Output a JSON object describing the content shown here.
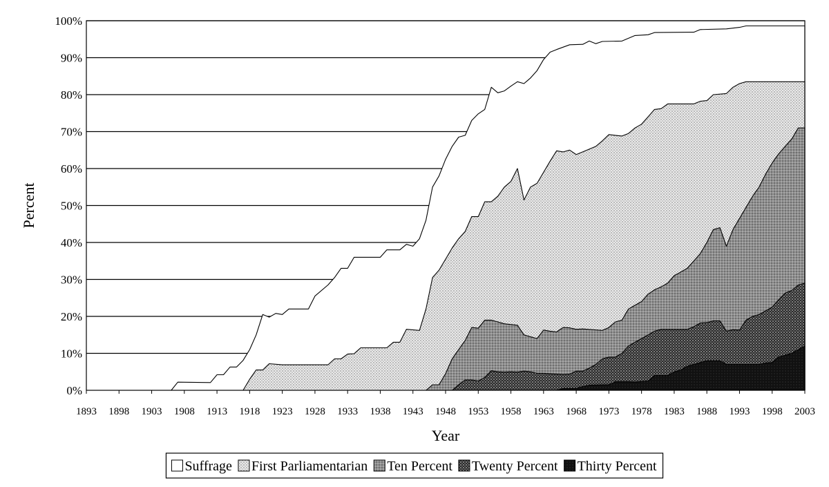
{
  "chart_data": {
    "type": "area",
    "xlabel": "Year",
    "ylabel": "Percent",
    "xlim": [
      1893,
      2003
    ],
    "ylim": [
      0,
      100
    ],
    "x_ticks": [
      1893,
      1898,
      1903,
      1908,
      1913,
      1918,
      1923,
      1928,
      1933,
      1938,
      1943,
      1948,
      1953,
      1958,
      1963,
      1968,
      1973,
      1978,
      1983,
      1988,
      1993,
      1998,
      2003
    ],
    "y_ticks": [
      0,
      10,
      20,
      30,
      40,
      50,
      60,
      70,
      80,
      90,
      100
    ],
    "y_tick_labels": [
      "0%",
      "10%",
      "20%",
      "30%",
      "40%",
      "50%",
      "60%",
      "70%",
      "80%",
      "90%",
      "100%"
    ],
    "grid": "horizontal",
    "legend_position": "bottom",
    "series": [
      {
        "name": "Suffrage",
        "fill": "white",
        "points": [
          [
            1893,
            0
          ],
          [
            1905,
            0
          ],
          [
            1906,
            0
          ],
          [
            1907,
            2.2
          ],
          [
            1912,
            2.1
          ],
          [
            1913,
            4.2
          ],
          [
            1914,
            4.2
          ],
          [
            1915,
            6.3
          ],
          [
            1916,
            6.3
          ],
          [
            1917,
            8.1
          ],
          [
            1918,
            11
          ],
          [
            1919,
            15
          ],
          [
            1920,
            20.5
          ],
          [
            1921,
            19.8
          ],
          [
            1922,
            20.8
          ],
          [
            1923,
            20.5
          ],
          [
            1924,
            22
          ],
          [
            1927,
            22
          ],
          [
            1928,
            25.5
          ],
          [
            1930,
            28.5
          ],
          [
            1931,
            30.5
          ],
          [
            1932,
            33
          ],
          [
            1933,
            33
          ],
          [
            1934,
            36
          ],
          [
            1938,
            36
          ],
          [
            1939,
            38
          ],
          [
            1941,
            38
          ],
          [
            1942,
            39.5
          ],
          [
            1943,
            39
          ],
          [
            1944,
            41
          ],
          [
            1945,
            46
          ],
          [
            1946,
            55
          ],
          [
            1947,
            58
          ],
          [
            1948,
            62.5
          ],
          [
            1949,
            66
          ],
          [
            1950,
            68.5
          ],
          [
            1951,
            69
          ],
          [
            1952,
            73
          ],
          [
            1953,
            74.8
          ],
          [
            1954,
            76
          ],
          [
            1955,
            82
          ],
          [
            1956,
            80.5
          ],
          [
            1957,
            81
          ],
          [
            1958,
            82.3
          ],
          [
            1959,
            83.5
          ],
          [
            1960,
            83
          ],
          [
            1961,
            84.5
          ],
          [
            1962,
            86.5
          ],
          [
            1963,
            89.5
          ],
          [
            1964,
            91.5
          ],
          [
            1965,
            92.2
          ],
          [
            1967,
            93.5
          ],
          [
            1969,
            93.6
          ],
          [
            1970,
            94.5
          ],
          [
            1971,
            93.8
          ],
          [
            1972,
            94.4
          ],
          [
            1975,
            94.5
          ],
          [
            1977,
            96
          ],
          [
            1979,
            96.2
          ],
          [
            1980,
            96.8
          ],
          [
            1986,
            96.9
          ],
          [
            1987,
            97.6
          ],
          [
            1991,
            97.8
          ],
          [
            1993,
            98.2
          ],
          [
            1994,
            98.6
          ],
          [
            2003,
            98.6
          ]
        ]
      },
      {
        "name": "First Parliamentarian",
        "fill": "light dots",
        "points": [
          [
            1893,
            0
          ],
          [
            1917,
            0
          ],
          [
            1918,
            3
          ],
          [
            1919,
            5.5
          ],
          [
            1920,
            5.5
          ],
          [
            1921,
            7.2
          ],
          [
            1923,
            6.9
          ],
          [
            1930,
            6.9
          ],
          [
            1931,
            8.5
          ],
          [
            1932,
            8.5
          ],
          [
            1933,
            9.8
          ],
          [
            1934,
            9.9
          ],
          [
            1935,
            11.5
          ],
          [
            1939,
            11.5
          ],
          [
            1940,
            13
          ],
          [
            1941,
            13
          ],
          [
            1942,
            16.5
          ],
          [
            1944,
            16.2
          ],
          [
            1945,
            22
          ],
          [
            1946,
            30.5
          ],
          [
            1947,
            32.5
          ],
          [
            1948,
            35.5
          ],
          [
            1949,
            38.5
          ],
          [
            1950,
            41
          ],
          [
            1951,
            43
          ],
          [
            1952,
            47
          ],
          [
            1953,
            47
          ],
          [
            1954,
            51
          ],
          [
            1955,
            51
          ],
          [
            1956,
            52.5
          ],
          [
            1957,
            55
          ],
          [
            1958,
            56.5
          ],
          [
            1959,
            60
          ],
          [
            1960,
            51.5
          ],
          [
            1961,
            55
          ],
          [
            1962,
            56
          ],
          [
            1963,
            59
          ],
          [
            1964,
            62
          ],
          [
            1965,
            64.8
          ],
          [
            1966,
            64.5
          ],
          [
            1967,
            65
          ],
          [
            1968,
            63.8
          ],
          [
            1969,
            64.5
          ],
          [
            1971,
            66
          ],
          [
            1972,
            67.5
          ],
          [
            1973,
            69.2
          ],
          [
            1974,
            69
          ],
          [
            1975,
            68.8
          ],
          [
            1976,
            69.5
          ],
          [
            1977,
            71
          ],
          [
            1978,
            72
          ],
          [
            1979,
            74
          ],
          [
            1980,
            76
          ],
          [
            1981,
            76.2
          ],
          [
            1982,
            77.5
          ],
          [
            1986,
            77.5
          ],
          [
            1987,
            78.2
          ],
          [
            1988,
            78.4
          ],
          [
            1989,
            80
          ],
          [
            1991,
            80.3
          ],
          [
            1992,
            82
          ],
          [
            1993,
            83
          ],
          [
            1994,
            83.5
          ],
          [
            2003,
            83.5
          ]
        ]
      },
      {
        "name": "Ten Percent",
        "fill": "medium dots",
        "points": [
          [
            1893,
            0
          ],
          [
            1945,
            0
          ],
          [
            1946,
            1.5
          ],
          [
            1947,
            1.5
          ],
          [
            1948,
            4.5
          ],
          [
            1949,
            8.5
          ],
          [
            1950,
            11
          ],
          [
            1951,
            13.5
          ],
          [
            1952,
            17
          ],
          [
            1953,
            16.8
          ],
          [
            1954,
            19
          ],
          [
            1955,
            19
          ],
          [
            1956,
            18.5
          ],
          [
            1957,
            18
          ],
          [
            1958,
            17.8
          ],
          [
            1959,
            17.6
          ],
          [
            1960,
            15
          ],
          [
            1962,
            14
          ],
          [
            1963,
            16.3
          ],
          [
            1964,
            16
          ],
          [
            1965,
            15.8
          ],
          [
            1966,
            17
          ],
          [
            1967,
            16.9
          ],
          [
            1968,
            16.5
          ],
          [
            1969,
            16.6
          ],
          [
            1972,
            16.2
          ],
          [
            1973,
            17
          ],
          [
            1974,
            18.5
          ],
          [
            1975,
            19
          ],
          [
            1976,
            22
          ],
          [
            1977,
            23
          ],
          [
            1978,
            24
          ],
          [
            1979,
            26
          ],
          [
            1980,
            27.2
          ],
          [
            1981,
            28
          ],
          [
            1982,
            29
          ],
          [
            1983,
            31
          ],
          [
            1984,
            32
          ],
          [
            1985,
            33
          ],
          [
            1986,
            35
          ],
          [
            1987,
            37
          ],
          [
            1988,
            40
          ],
          [
            1989,
            43.5
          ],
          [
            1990,
            44
          ],
          [
            1991,
            39
          ],
          [
            1992,
            43.5
          ],
          [
            1993,
            46.5
          ],
          [
            1994,
            49.5
          ],
          [
            1995,
            52.5
          ],
          [
            1996,
            55
          ],
          [
            1997,
            58.5
          ],
          [
            1998,
            61.5
          ],
          [
            1999,
            64
          ],
          [
            2000,
            66
          ],
          [
            2001,
            68
          ],
          [
            2002,
            71
          ],
          [
            2003,
            71
          ]
        ]
      },
      {
        "name": "Twenty Percent",
        "fill": "dark dots",
        "points": [
          [
            1893,
            0
          ],
          [
            1949,
            0
          ],
          [
            1950,
            1.5
          ],
          [
            1951,
            2.8
          ],
          [
            1952,
            2.8
          ],
          [
            1953,
            2.5
          ],
          [
            1954,
            3.5
          ],
          [
            1955,
            5.3
          ],
          [
            1956,
            5
          ],
          [
            1957,
            4.9
          ],
          [
            1958,
            5
          ],
          [
            1959,
            4.9
          ],
          [
            1960,
            5.2
          ],
          [
            1961,
            5
          ],
          [
            1962,
            4.6
          ],
          [
            1963,
            4.6
          ],
          [
            1966,
            4.3
          ],
          [
            1967,
            4.4
          ],
          [
            1968,
            5.2
          ],
          [
            1969,
            5.2
          ],
          [
            1970,
            6
          ],
          [
            1971,
            7
          ],
          [
            1972,
            8.5
          ],
          [
            1973,
            9
          ],
          [
            1974,
            9
          ],
          [
            1975,
            10
          ],
          [
            1976,
            12
          ],
          [
            1977,
            13
          ],
          [
            1978,
            14
          ],
          [
            1979,
            15
          ],
          [
            1980,
            16
          ],
          [
            1981,
            16.5
          ],
          [
            1985,
            16.5
          ],
          [
            1986,
            17.2
          ],
          [
            1987,
            18.2
          ],
          [
            1988,
            18.3
          ],
          [
            1989,
            18.8
          ],
          [
            1990,
            18.8
          ],
          [
            1991,
            16
          ],
          [
            1992,
            16.4
          ],
          [
            1993,
            16.3
          ],
          [
            1994,
            19
          ],
          [
            1995,
            20
          ],
          [
            1996,
            20.5
          ],
          [
            1997,
            21.5
          ],
          [
            1998,
            22.5
          ],
          [
            1999,
            24.5
          ],
          [
            2000,
            26.3
          ],
          [
            2001,
            27
          ],
          [
            2002,
            28.5
          ],
          [
            2003,
            29
          ]
        ]
      },
      {
        "name": "Thirty Percent",
        "fill": "black",
        "points": [
          [
            1893,
            0
          ],
          [
            1965,
            0
          ],
          [
            1966,
            0.5
          ],
          [
            1968,
            0.5
          ],
          [
            1969,
            1
          ],
          [
            1970,
            1.4
          ],
          [
            1973,
            1.5
          ],
          [
            1974,
            2.3
          ],
          [
            1976,
            2.3
          ],
          [
            1977,
            2.2
          ],
          [
            1979,
            2.5
          ],
          [
            1980,
            4
          ],
          [
            1982,
            4
          ],
          [
            1983,
            5
          ],
          [
            1984,
            5.5
          ],
          [
            1985,
            6.5
          ],
          [
            1986,
            7
          ],
          [
            1987,
            7.5
          ],
          [
            1988,
            8
          ],
          [
            1990,
            8
          ],
          [
            1991,
            7
          ],
          [
            1996,
            7
          ],
          [
            1997,
            7.4
          ],
          [
            1998,
            7.5
          ],
          [
            1999,
            9
          ],
          [
            2000,
            9.5
          ],
          [
            2001,
            10
          ],
          [
            2002,
            11
          ],
          [
            2003,
            12
          ]
        ]
      }
    ]
  }
}
